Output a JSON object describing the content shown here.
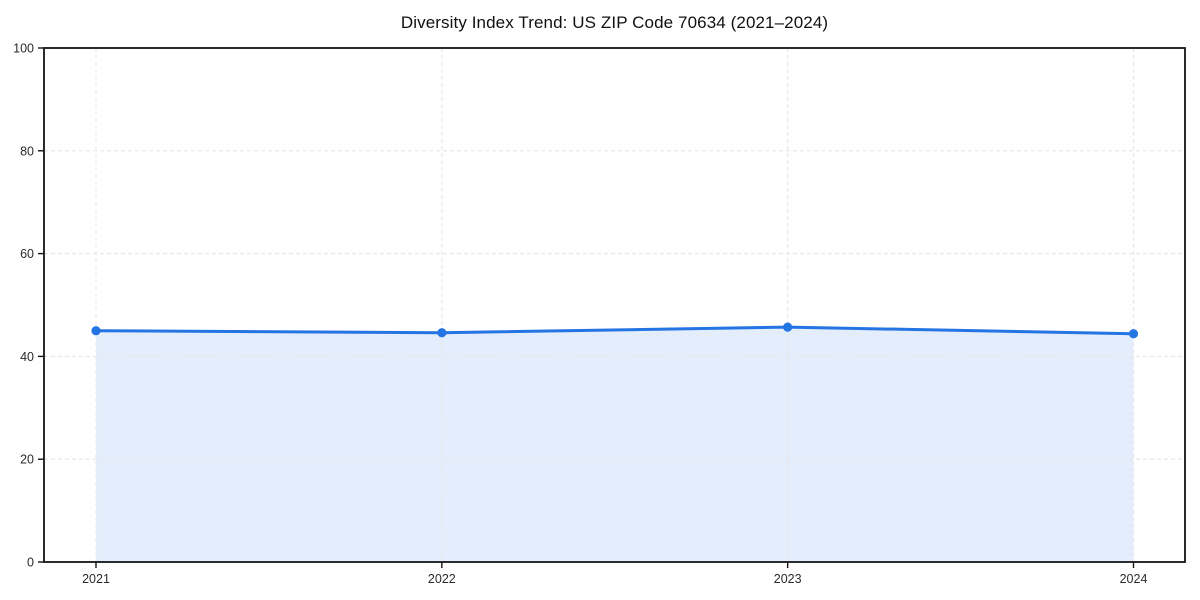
{
  "chart_data": {
    "type": "area",
    "title": "Diversity Index Trend: US ZIP Code 70634 (2021–2024)",
    "x": [
      "2021",
      "2022",
      "2023",
      "2024"
    ],
    "series": [
      {
        "name": "Diversity Index",
        "values": [
          45.0,
          44.6,
          45.7,
          44.4
        ]
      }
    ],
    "xlabel": "",
    "ylabel": "",
    "ylim": [
      0,
      100
    ],
    "yticks": [
      0,
      20,
      40,
      60,
      80,
      100
    ],
    "grid": "dashed-both-axes",
    "legend_position": "none",
    "line_color": "#2474e4",
    "marker_color": "#2474e4",
    "fill_color": "#e4edfb",
    "grid_color": "#e6e6e6",
    "spine_color": "#141414",
    "tick_color": "#141414",
    "tick_label_color": "#2b2b2b",
    "title_color": "#111111",
    "background_color": "#ffffff"
  }
}
